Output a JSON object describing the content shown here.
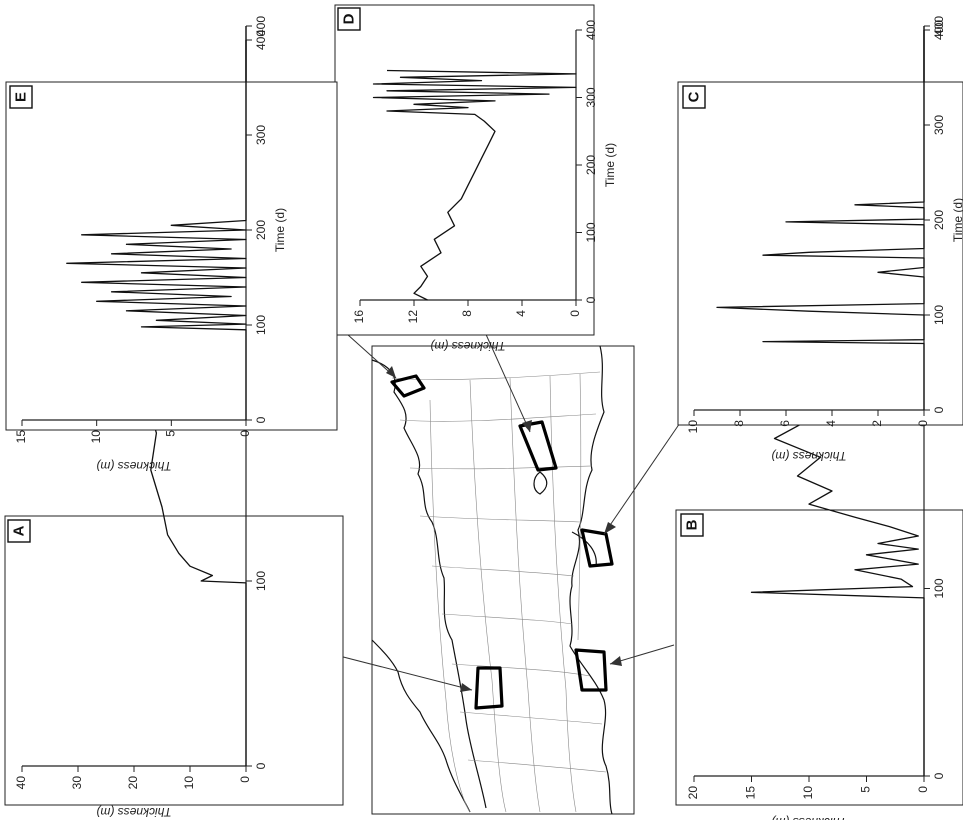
{
  "chart_data": [
    {
      "id": "A",
      "type": "line",
      "label": "A",
      "xlabel": "Time (d)",
      "ylabel": "Thickness (m)",
      "xlim": [
        0,
        400
      ],
      "ylim": [
        0,
        40
      ],
      "xticks": [
        "0",
        "100",
        "200",
        "300",
        "400"
      ],
      "yticks": [
        "0",
        "10",
        "20",
        "30",
        "40"
      ],
      "x": [
        0,
        99,
        100,
        103,
        108,
        115,
        125,
        140,
        160,
        180,
        200,
        220,
        240,
        255,
        265,
        272,
        276,
        280,
        281,
        300,
        400
      ],
      "y": [
        0,
        0,
        8,
        6,
        10,
        12,
        14,
        15,
        17,
        16,
        18,
        20,
        19,
        22,
        25,
        27,
        33,
        34,
        0,
        0,
        0
      ]
    },
    {
      "id": "B",
      "type": "line",
      "label": "B",
      "xlabel": "Time (d)",
      "ylabel": "Thickness (m)",
      "xlim": [
        0,
        400
      ],
      "ylim": [
        0,
        20
      ],
      "xticks": [
        "0",
        "100",
        "200",
        "300",
        "400"
      ],
      "yticks": [
        "0",
        "5",
        "10",
        "15",
        "20"
      ],
      "x": [
        0,
        95,
        98,
        101,
        105,
        110,
        113,
        118,
        121,
        124,
        128,
        133,
        138,
        145,
        152,
        160,
        170,
        180,
        190,
        200,
        210,
        222,
        232,
        245,
        258,
        268,
        276,
        280,
        281,
        300,
        400
      ],
      "y": [
        0,
        0,
        15,
        1,
        2,
        6,
        0.5,
        5,
        0.5,
        4,
        0.5,
        3,
        6,
        10,
        8,
        11,
        9,
        13,
        10,
        14,
        12,
        10,
        13,
        15,
        16,
        14,
        8,
        5,
        0,
        0,
        0
      ]
    },
    {
      "id": "C",
      "type": "line",
      "label": "C",
      "xlabel": "Time (d)",
      "ylabel": "Thickness (m)",
      "xlim": [
        0,
        400
      ],
      "ylim": [
        0,
        10
      ],
      "xticks": [
        "0",
        "100",
        "200",
        "300",
        "400"
      ],
      "yticks": [
        "0",
        "2",
        "4",
        "6",
        "8",
        "10"
      ],
      "x": [
        0,
        70,
        72,
        74,
        100,
        104,
        108,
        112,
        140,
        145,
        150,
        160,
        163,
        166,
        170,
        185,
        195,
        198,
        201,
        205,
        213,
        216,
        219,
        230,
        400
      ],
      "y": [
        0,
        0,
        7,
        0,
        0,
        5,
        9,
        0,
        0,
        2,
        0,
        0,
        7,
        5,
        0,
        0,
        0,
        6,
        0,
        0,
        0,
        3,
        0,
        0,
        0
      ]
    },
    {
      "id": "D",
      "type": "line",
      "label": "D",
      "xlabel": "Time (d)",
      "ylabel": "Thickness (m)",
      "xlim": [
        0,
        400
      ],
      "ylim": [
        0,
        16
      ],
      "xticks": [
        "0",
        "100",
        "200",
        "300",
        "400"
      ],
      "yticks": [
        "0",
        "4",
        "8",
        "12",
        "16"
      ],
      "x": [
        0,
        10,
        20,
        35,
        50,
        70,
        90,
        110,
        130,
        150,
        170,
        190,
        210,
        230,
        250,
        265,
        275,
        280,
        285,
        290,
        295,
        300,
        305,
        310,
        315,
        320,
        325,
        330,
        335,
        340
      ],
      "y": [
        11,
        12,
        11.5,
        11,
        11.5,
        10,
        10.5,
        9,
        9.5,
        8.5,
        8,
        7.5,
        7,
        6.5,
        6,
        6.8,
        7.5,
        14,
        8,
        12,
        6,
        15,
        2,
        14,
        0,
        15,
        7,
        13,
        0,
        14
      ]
    },
    {
      "id": "E",
      "type": "line",
      "label": "E",
      "xlabel": "Time (d)",
      "ylabel": "Thickness (m)",
      "xlim": [
        0,
        400
      ],
      "ylim": [
        0,
        15
      ],
      "xticks": [
        "0",
        "100",
        "200",
        "300",
        "400"
      ],
      "yticks": [
        "0",
        "5",
        "10",
        "15"
      ],
      "x": [
        0,
        95,
        98,
        101,
        105,
        110,
        115,
        120,
        125,
        130,
        135,
        140,
        145,
        150,
        155,
        160,
        165,
        170,
        175,
        180,
        185,
        190,
        195,
        200,
        205,
        210,
        400
      ],
      "y": [
        0,
        0,
        7,
        0,
        6,
        0,
        8,
        0,
        10,
        1,
        9,
        0,
        11,
        0,
        7,
        0,
        12,
        0,
        9,
        1,
        8,
        0,
        11,
        0,
        5,
        0,
        0
      ]
    }
  ],
  "map": {
    "description_labels": [
      "A",
      "B",
      "C",
      "D",
      "E"
    ]
  }
}
